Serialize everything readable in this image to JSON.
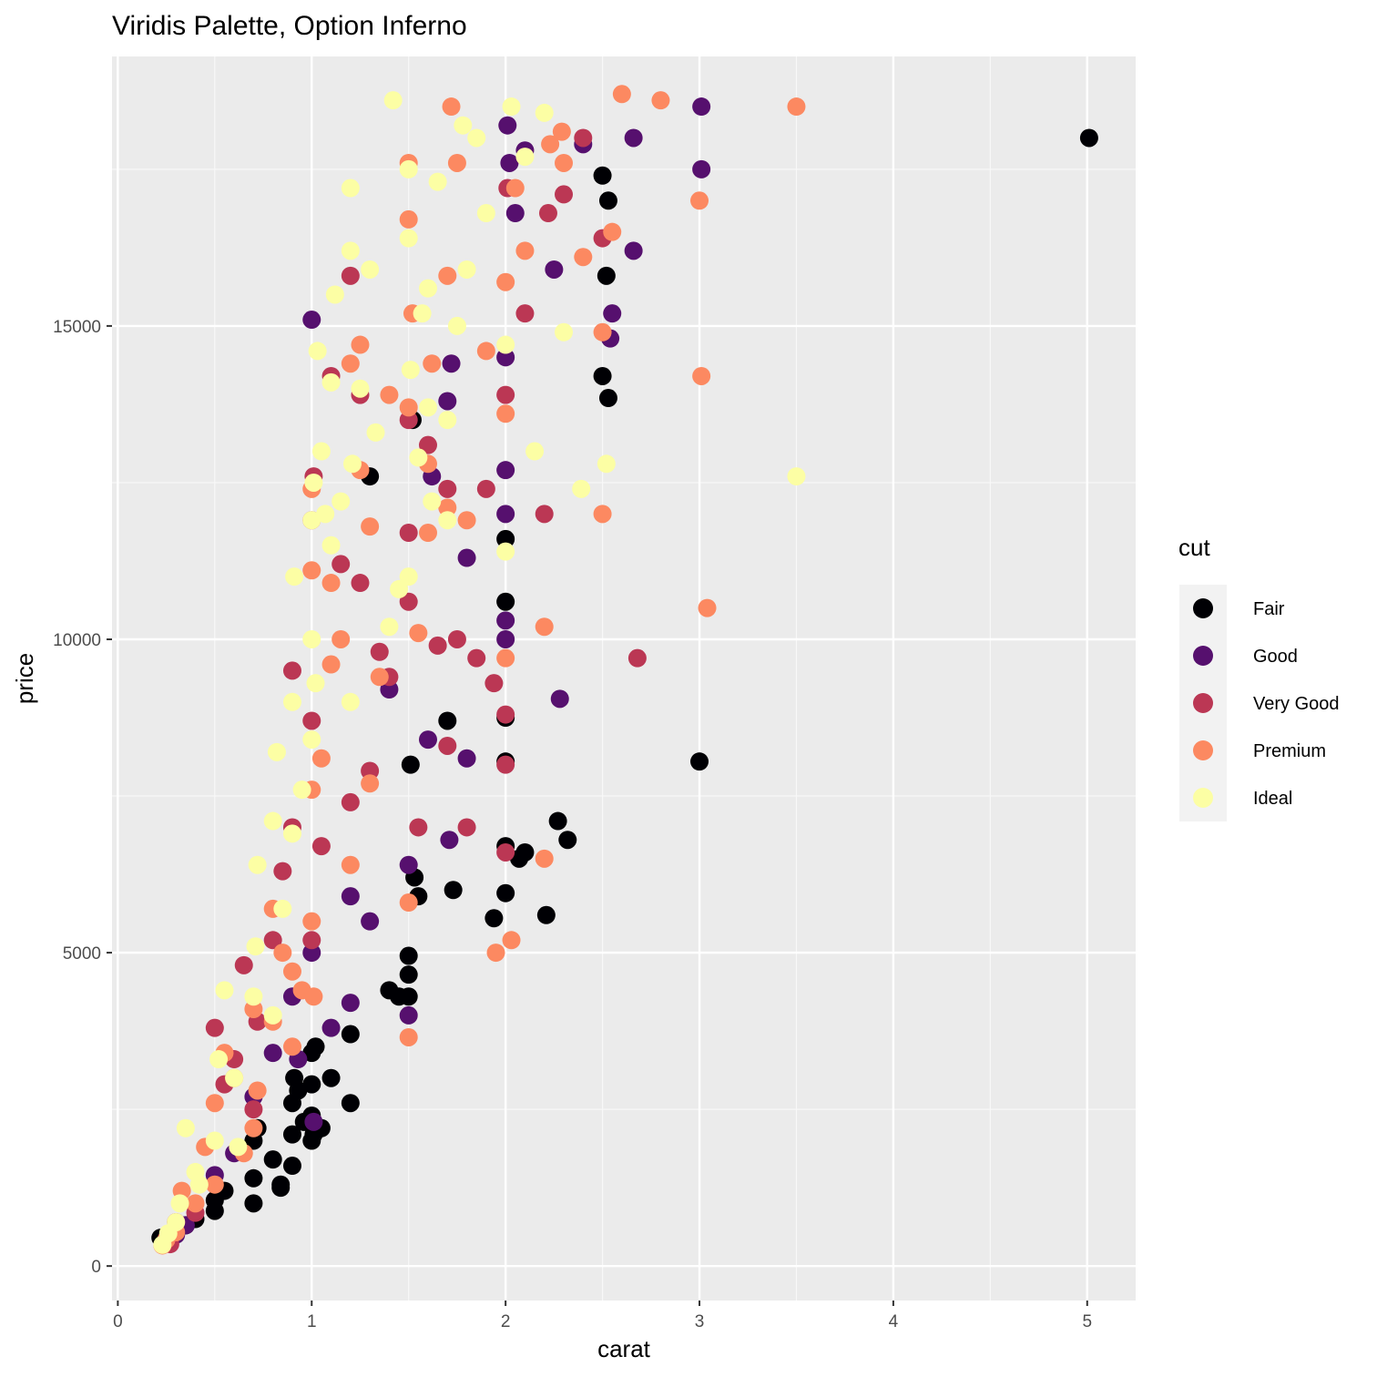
{
  "chart_data": {
    "type": "scatter",
    "title": "Viridis Palette, Option Inferno",
    "xlabel": "carat",
    "ylabel": "price",
    "xlim": [
      -0.03,
      5.25
    ],
    "ylim": [
      -550,
      19300
    ],
    "x_ticks": [
      0,
      1,
      2,
      3,
      4,
      5
    ],
    "x_tick_labels": [
      "0",
      "1",
      "2",
      "3",
      "4",
      "5"
    ],
    "y_ticks": [
      0,
      5000,
      10000,
      15000
    ],
    "y_tick_labels": [
      "0",
      "5000",
      "10000",
      "15000"
    ],
    "grid": true,
    "panel_background": "#ebebeb",
    "legend": {
      "title": "cut",
      "placement": "right",
      "entries": [
        "Fair",
        "Good",
        "Very Good",
        "Premium",
        "Ideal"
      ]
    },
    "series": [
      {
        "name": "Fair",
        "color": "#000004",
        "x": [
          0.22,
          0.27,
          0.3,
          0.35,
          0.4,
          0.5,
          0.5,
          0.55,
          0.7,
          0.7,
          0.7,
          0.72,
          0.8,
          0.84,
          0.84,
          0.9,
          0.9,
          0.9,
          0.91,
          0.93,
          0.96,
          1.0,
          1.0,
          1.0,
          1.0,
          1.01,
          1.02,
          1.05,
          1.1,
          1.2,
          1.2,
          1.3,
          1.4,
          1.45,
          1.5,
          1.5,
          1.5,
          1.51,
          1.52,
          1.53,
          1.55,
          1.7,
          1.73,
          1.94,
          2.0,
          2.0,
          2.0,
          2.0,
          2.0,
          2.0,
          2.07,
          2.1,
          2.21,
          2.27,
          2.32,
          2.5,
          2.5,
          2.52,
          2.53,
          2.53,
          3.0,
          5.01
        ],
        "y": [
          450,
          480,
          560,
          650,
          750,
          880,
          1050,
          1200,
          1000,
          1400,
          2000,
          2200,
          1700,
          1300,
          1250,
          1600,
          2100,
          2600,
          3000,
          2800,
          2300,
          2000,
          2400,
          2900,
          3400,
          2100,
          3500,
          2200,
          3000,
          2600,
          3700,
          12600,
          4400,
          4300,
          4300,
          4650,
          4950,
          8000,
          13500,
          6200,
          5900,
          8700,
          6000,
          5550,
          6700,
          5950,
          8050,
          8750,
          10600,
          11600,
          6500,
          6600,
          5600,
          7100,
          6800,
          17400,
          14200,
          15800,
          13850,
          17000,
          8050,
          18000
        ]
      },
      {
        "name": "Good",
        "color": "#56106e",
        "x": [
          0.25,
          0.3,
          0.35,
          0.5,
          0.6,
          0.7,
          0.8,
          0.9,
          0.93,
          1.0,
          1.0,
          1.01,
          1.1,
          1.2,
          1.2,
          1.3,
          1.4,
          1.5,
          1.5,
          1.6,
          1.62,
          1.7,
          1.71,
          1.72,
          1.8,
          1.8,
          2.0,
          2.0,
          2.0,
          2.0,
          2.0,
          2.01,
          2.02,
          2.05,
          2.1,
          2.25,
          2.28,
          2.4,
          2.54,
          2.55,
          2.66,
          2.66,
          3.01,
          3.01
        ],
        "y": [
          420,
          500,
          650,
          1450,
          1800,
          2700,
          3400,
          4300,
          3300,
          15100,
          5000,
          2300,
          3800,
          4200,
          5900,
          5500,
          9200,
          4000,
          6400,
          8400,
          12600,
          13800,
          6800,
          14400,
          11300,
          8100,
          14500,
          12000,
          10000,
          10300,
          12700,
          18200,
          17600,
          16800,
          17800,
          15900,
          9050,
          17900,
          14800,
          15200,
          16200,
          18000,
          17500,
          18500
        ]
      },
      {
        "name": "Very Good",
        "color": "#bb3754",
        "x": [
          0.27,
          0.3,
          0.4,
          0.5,
          0.55,
          0.6,
          0.65,
          0.7,
          0.72,
          0.8,
          0.85,
          0.9,
          0.9,
          1.0,
          1.0,
          1.0,
          1.01,
          1.05,
          1.1,
          1.15,
          1.2,
          1.2,
          1.25,
          1.25,
          1.3,
          1.35,
          1.4,
          1.5,
          1.5,
          1.5,
          1.55,
          1.6,
          1.65,
          1.7,
          1.7,
          1.75,
          1.8,
          1.85,
          1.9,
          1.94,
          2.0,
          2.0,
          2.0,
          2.0,
          2.01,
          2.1,
          2.2,
          2.22,
          2.3,
          2.4,
          2.5,
          2.68
        ],
        "y": [
          350,
          700,
          850,
          3800,
          2900,
          3300,
          4800,
          2500,
          3900,
          5200,
          6300,
          7000,
          9500,
          5200,
          8700,
          11900,
          12600,
          6700,
          14200,
          11200,
          7400,
          15800,
          13900,
          10900,
          7900,
          9800,
          9400,
          11700,
          13500,
          10600,
          7000,
          13100,
          9900,
          12400,
          8300,
          10000,
          7000,
          9700,
          12400,
          9300,
          8800,
          6600,
          8000,
          13900,
          17200,
          15200,
          12000,
          16800,
          17100,
          18000,
          16400,
          9700
        ]
      },
      {
        "name": "Premium",
        "color": "#fc8961",
        "x": [
          0.23,
          0.25,
          0.3,
          0.33,
          0.4,
          0.45,
          0.5,
          0.5,
          0.55,
          0.6,
          0.65,
          0.7,
          0.7,
          0.72,
          0.8,
          0.8,
          0.85,
          0.9,
          0.9,
          0.95,
          1.0,
          1.0,
          1.0,
          1.0,
          1.01,
          1.05,
          1.1,
          1.1,
          1.15,
          1.2,
          1.2,
          1.25,
          1.25,
          1.3,
          1.3,
          1.35,
          1.4,
          1.5,
          1.5,
          1.5,
          1.5,
          1.5,
          1.52,
          1.55,
          1.6,
          1.6,
          1.62,
          1.7,
          1.7,
          1.72,
          1.75,
          1.8,
          1.9,
          1.95,
          2.0,
          2.0,
          2.0,
          2.03,
          2.05,
          2.1,
          2.2,
          2.2,
          2.23,
          2.3,
          2.4,
          2.5,
          2.5,
          2.55,
          3.0,
          3.01,
          3.04,
          3.5,
          2.6,
          2.29,
          2.8
        ],
        "y": [
          330,
          420,
          540,
          1200,
          1000,
          1900,
          2600,
          1300,
          3400,
          3000,
          1800,
          4100,
          2200,
          2800,
          3900,
          5700,
          5000,
          4700,
          3500,
          4400,
          5500,
          7600,
          11100,
          12400,
          4300,
          8100,
          9600,
          10900,
          10000,
          6400,
          14400,
          14700,
          12700,
          11800,
          7700,
          9400,
          13900,
          3650,
          5800,
          13700,
          16700,
          17600,
          15200,
          10100,
          11700,
          12800,
          14400,
          12100,
          15800,
          18500,
          17600,
          11900,
          14600,
          5000,
          13600,
          9700,
          15700,
          5200,
          17200,
          16200,
          10200,
          6500,
          17900,
          17600,
          16100,
          12000,
          14900,
          16500,
          17000,
          14200,
          10500,
          18500,
          18700,
          18100,
          18600
        ]
      },
      {
        "name": "Ideal",
        "color": "#fcfea4",
        "x": [
          0.23,
          0.26,
          0.3,
          0.32,
          0.35,
          0.4,
          0.42,
          0.5,
          0.52,
          0.55,
          0.6,
          0.62,
          0.7,
          0.71,
          0.72,
          0.8,
          0.8,
          0.82,
          0.85,
          0.9,
          0.9,
          0.91,
          0.95,
          1.0,
          1.0,
          1.0,
          1.01,
          1.02,
          1.03,
          1.05,
          1.07,
          1.1,
          1.1,
          1.12,
          1.15,
          1.2,
          1.2,
          1.2,
          1.21,
          1.25,
          1.3,
          1.33,
          1.4,
          1.42,
          1.5,
          1.5,
          1.5,
          1.51,
          1.55,
          1.6,
          1.6,
          1.62,
          1.65,
          1.7,
          1.7,
          1.75,
          1.8,
          1.85,
          1.9,
          2.0,
          2.0,
          2.03,
          2.1,
          2.15,
          2.2,
          2.3,
          2.39,
          2.52,
          3.5,
          1.45,
          1.57,
          1.78
        ],
        "y": [
          340,
          520,
          700,
          1000,
          2200,
          1500,
          1300,
          2000,
          3300,
          4400,
          3000,
          1900,
          4300,
          5100,
          6400,
          7100,
          4000,
          8200,
          5700,
          6900,
          9000,
          11000,
          7600,
          10000,
          8400,
          11900,
          12500,
          9300,
          14600,
          13000,
          12000,
          14100,
          11500,
          15500,
          12200,
          9000,
          16200,
          17200,
          12800,
          14000,
          15900,
          13300,
          10200,
          18600,
          11000,
          17500,
          16400,
          14300,
          12900,
          15600,
          13700,
          12200,
          17300,
          11900,
          13500,
          15000,
          15900,
          18000,
          16800,
          14700,
          11400,
          18500,
          17700,
          13000,
          18400,
          14900,
          12400,
          12800,
          12600,
          10800,
          15200,
          18200
        ]
      }
    ]
  }
}
